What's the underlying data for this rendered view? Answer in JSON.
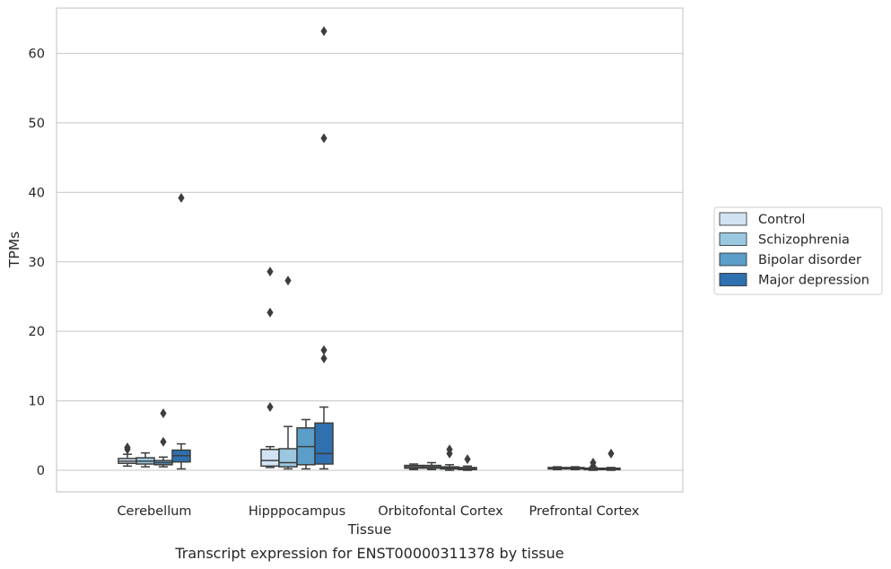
{
  "chart_data": {
    "type": "box",
    "title": "",
    "caption": "Transcript expression for ENST00000311378 by tissue",
    "xlabel": "Tissue",
    "ylabel": "TPMs",
    "ylim": [
      -3,
      66.5
    ],
    "yticks": [
      0,
      10,
      20,
      30,
      40,
      50,
      60
    ],
    "ytick_labels": [
      "0",
      "10",
      "20",
      "30",
      "40",
      "50",
      "60"
    ],
    "grid": "horizontal",
    "legend_position": "right",
    "categories": [
      "Cerebellum",
      "Hipppocampus",
      "Orbitofontal Cortex",
      "Prefrontal Cortex"
    ],
    "series": [
      {
        "name": "Control",
        "color": "#d2e3f3",
        "boxes": [
          {
            "whislo": 0.6,
            "q1": 1.0,
            "median": 1.3,
            "q3": 1.7,
            "whishi": 2.3,
            "fliers": [
              3.0,
              3.3
            ]
          },
          {
            "whislo": 0.4,
            "q1": 0.6,
            "median": 1.4,
            "q3": 3.0,
            "whishi": 3.4,
            "fliers": [
              9.1,
              22.7,
              28.6
            ]
          },
          {
            "whislo": 0.1,
            "q1": 0.3,
            "median": 0.5,
            "q3": 0.7,
            "whishi": 0.9,
            "fliers": []
          },
          {
            "whislo": 0.1,
            "q1": 0.2,
            "median": 0.3,
            "q3": 0.4,
            "whishi": 0.5,
            "fliers": []
          }
        ]
      },
      {
        "name": "Schizophrenia",
        "color": "#9ac8e0",
        "boxes": [
          {
            "whislo": 0.5,
            "q1": 0.9,
            "median": 1.3,
            "q3": 1.8,
            "whishi": 2.5,
            "fliers": []
          },
          {
            "whislo": 0.2,
            "q1": 0.5,
            "median": 1.1,
            "q3": 3.1,
            "whishi": 6.3,
            "fliers": [
              27.3
            ]
          },
          {
            "whislo": 0.1,
            "q1": 0.3,
            "median": 0.5,
            "q3": 0.7,
            "whishi": 1.1,
            "fliers": []
          },
          {
            "whislo": 0.1,
            "q1": 0.2,
            "median": 0.3,
            "q3": 0.4,
            "whishi": 0.5,
            "fliers": []
          }
        ]
      },
      {
        "name": "Bipolar disorder",
        "color": "#5a9ec9",
        "boxes": [
          {
            "whislo": 0.5,
            "q1": 0.8,
            "median": 1.1,
            "q3": 1.4,
            "whishi": 1.9,
            "fliers": [
              4.1,
              8.2
            ]
          },
          {
            "whislo": 0.2,
            "q1": 0.8,
            "median": 3.4,
            "q3": 6.1,
            "whishi": 7.3,
            "fliers": []
          },
          {
            "whislo": 0.0,
            "q1": 0.2,
            "median": 0.3,
            "q3": 0.5,
            "whishi": 0.8,
            "fliers": [
              2.4,
              3.0
            ]
          },
          {
            "whislo": 0.0,
            "q1": 0.1,
            "median": 0.2,
            "q3": 0.3,
            "whishi": 0.4,
            "fliers": [
              0.6,
              1.1
            ]
          }
        ]
      },
      {
        "name": "Major depression",
        "color": "#2e70b0",
        "boxes": [
          {
            "whislo": 0.2,
            "q1": 1.2,
            "median": 2.1,
            "q3": 2.9,
            "whishi": 3.8,
            "fliers": [
              39.2
            ]
          },
          {
            "whislo": 0.2,
            "q1": 0.9,
            "median": 2.4,
            "q3": 6.8,
            "whishi": 9.1,
            "fliers": [
              16.1,
              17.3,
              47.8,
              63.2
            ]
          },
          {
            "whislo": 0.0,
            "q1": 0.1,
            "median": 0.2,
            "q3": 0.4,
            "whishi": 0.6,
            "fliers": [
              1.6
            ]
          },
          {
            "whislo": 0.0,
            "q1": 0.1,
            "median": 0.2,
            "q3": 0.3,
            "whishi": 0.4,
            "fliers": [
              2.4
            ]
          }
        ]
      }
    ]
  }
}
